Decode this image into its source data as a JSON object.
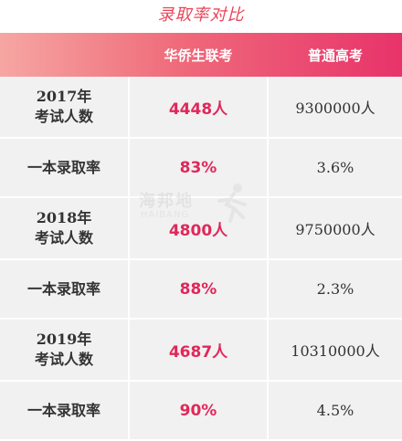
{
  "title": "录取率对比",
  "header": {
    "col1": "",
    "col2": "华侨生联考",
    "col3": "普通高考"
  },
  "rows": [
    {
      "label_line1": "2017年",
      "label_line2": "考试人数",
      "hq": "4448人",
      "gk": "9300000人"
    },
    {
      "label_line1": "一本录取率",
      "label_line2": "",
      "hq": "83%",
      "gk": "3.6%"
    },
    {
      "label_line1": "2018年",
      "label_line2": "考试人数",
      "hq": "4800人",
      "gk": "9750000人"
    },
    {
      "label_line1": "一本录取率",
      "label_line2": "",
      "hq": "88%",
      "gk": "2.3%"
    },
    {
      "label_line1": "2019年",
      "label_line2": "考试人数",
      "hq": "4687人",
      "gk": "10310000人"
    },
    {
      "label_line1": "一本录取率",
      "label_line2": "",
      "hq": "90%",
      "gk": "4.5%"
    }
  ],
  "watermark": {
    "text": "海邦地",
    "sub": "HAIBANG"
  },
  "colors": {
    "title": "#e9455a",
    "header_gradient_start": "#f6a6a2",
    "header_gradient_end": "#e8336a",
    "highlight": "#e0285a",
    "row_bg": "#f1f1f2"
  }
}
